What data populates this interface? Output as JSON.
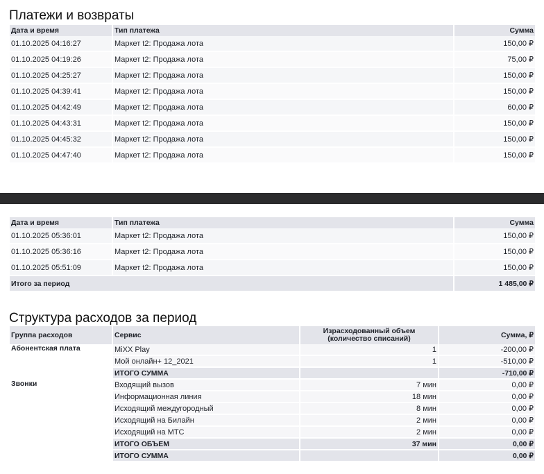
{
  "payments": {
    "title": "Платежи и возвраты",
    "headers": [
      "Дата и время",
      "Тип платежа",
      "Сумма"
    ],
    "rows": [
      {
        "date": "01.10.2025 04:16:27",
        "type": "Маркет t2: Продажа лота",
        "amount": "150,00 ₽"
      },
      {
        "date": "01.10.2025 04:19:26",
        "type": "Маркет t2: Продажа лота",
        "amount": "75,00 ₽"
      },
      {
        "date": "01.10.2025 04:25:27",
        "type": "Маркет t2: Продажа лота",
        "amount": "150,00 ₽"
      },
      {
        "date": "01.10.2025 04:39:41",
        "type": "Маркет t2: Продажа лота",
        "amount": "150,00 ₽"
      },
      {
        "date": "01.10.2025 04:42:49",
        "type": "Маркет t2: Продажа лота",
        "amount": "60,00 ₽"
      },
      {
        "date": "01.10.2025 04:43:31",
        "type": "Маркет t2: Продажа лота",
        "amount": "150,00 ₽"
      },
      {
        "date": "01.10.2025 04:45:32",
        "type": "Маркет t2: Продажа лота",
        "amount": "150,00 ₽"
      },
      {
        "date": "01.10.2025 04:47:40",
        "type": "Маркет t2: Продажа лота",
        "amount": "150,00 ₽"
      }
    ]
  },
  "payments2": {
    "headers": [
      "Дата и время",
      "Тип платежа",
      "Сумма"
    ],
    "rows": [
      {
        "date": "01.10.2025 05:36:01",
        "type": "Маркет t2: Продажа лота",
        "amount": "150,00 ₽"
      },
      {
        "date": "01.10.2025 05:36:16",
        "type": "Маркет t2: Продажа лота",
        "amount": "150,00 ₽"
      },
      {
        "date": "01.10.2025 05:51:09",
        "type": "Маркет t2: Продажа лота",
        "amount": "150,00 ₽"
      }
    ],
    "total_label": "Итого за период",
    "total": "1 485,00 ₽"
  },
  "expenses": {
    "title": "Структура расходов за период",
    "headers": [
      "Группа расходов",
      "Сервис",
      "Израсходованный объем",
      "(количество списаний)",
      "Сумма, ₽"
    ],
    "groups": [
      {
        "name": "Абонентская плата",
        "rows": [
          {
            "service": "MiXX Play",
            "volume": "1",
            "sum": "-200,00 ₽"
          },
          {
            "service": "Мой онлайн+ 12_2021",
            "volume": "1",
            "sum": "-510,00 ₽"
          },
          {
            "service": "ИТОГО СУММА",
            "volume": "",
            "sum": "-710,00 ₽",
            "total": true
          }
        ]
      },
      {
        "name": "Звонки",
        "rows": [
          {
            "service": "Входящий вызов",
            "volume": "7 мин",
            "sum": "0,00 ₽"
          },
          {
            "service": "Информационная линия",
            "volume": "18 мин",
            "sum": "0,00 ₽"
          },
          {
            "service": "Исходящий междугородный",
            "volume": "8 мин",
            "sum": "0,00 ₽"
          },
          {
            "service": "Исходящий на Билайн",
            "volume": "2 мин",
            "sum": "0,00 ₽"
          },
          {
            "service": "Исходящий на МТС",
            "volume": "2 мин",
            "sum": "0,00 ₽"
          },
          {
            "service": "ИТОГО ОБЪЕМ",
            "volume": "37 мин",
            "sum": "0,00 ₽",
            "total": true
          },
          {
            "service": "ИТОГО СУММА",
            "volume": "",
            "sum": "0,00 ₽",
            "total": true
          }
        ]
      }
    ]
  }
}
